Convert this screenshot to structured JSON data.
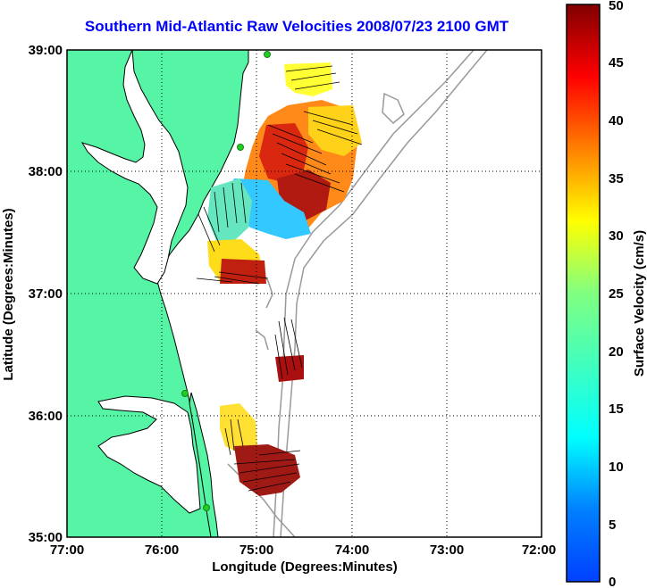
{
  "title": "Southern Mid-Atlantic Raw Velocities 2008/07/23 2100 GMT",
  "map": {
    "xlabel": "Longitude (Degrees:Minutes)",
    "ylabel": "Latitude (Degrees:Minutes)",
    "x_ticks": [
      "77:00",
      "76:00",
      "75:00",
      "74:00",
      "73:00",
      "72:00"
    ],
    "y_ticks": [
      "39:00",
      "38:00",
      "37:00",
      "36:00",
      "35:00"
    ],
    "x_range": [
      -77,
      -72
    ],
    "y_range": [
      35,
      39
    ],
    "colors": {
      "land": "#55f5a5",
      "coast": "#000000",
      "bathymetry": "#999999",
      "station": "#22cc22"
    }
  },
  "colorbar": {
    "label": "Surface Velocity (cm/s)",
    "ticks": [
      "50",
      "45",
      "40",
      "35",
      "30",
      "25",
      "20",
      "15",
      "10",
      "5",
      "0"
    ],
    "range": [
      0,
      50
    ],
    "colormap": "jet"
  }
}
